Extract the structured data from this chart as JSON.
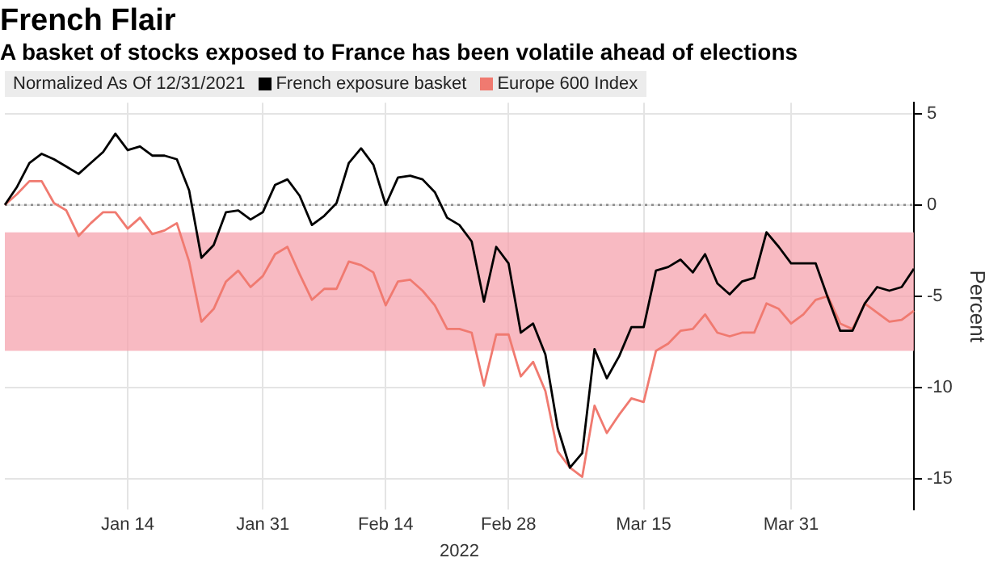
{
  "chart_data": {
    "type": "line",
    "title": "French Flair",
    "subtitle": "A basket of stocks exposed to France has been volatile ahead of elections",
    "xlabel": "2022",
    "ylabel": "Percent",
    "legend_title": "Normalized As Of 12/31/2021",
    "legend": "top left",
    "grid": true,
    "categories": [
      null,
      null,
      null,
      null,
      null,
      null,
      null,
      null,
      null,
      null,
      "Jan 14",
      null,
      null,
      null,
      null,
      null,
      null,
      null,
      null,
      null,
      null,
      "Jan 31",
      null,
      null,
      null,
      null,
      null,
      null,
      null,
      null,
      null,
      "Feb 14",
      null,
      null,
      null,
      null,
      null,
      null,
      null,
      null,
      null,
      "Feb 28",
      null,
      null,
      null,
      null,
      null,
      null,
      null,
      null,
      null,
      null,
      "Mar 15",
      null,
      null,
      null,
      null,
      null,
      null,
      null,
      null,
      null,
      null,
      null,
      "Mar 31",
      null,
      null,
      null,
      null,
      null,
      null,
      null,
      null,
      null,
      null
    ],
    "ylim": [
      -16.7,
      5.6
    ],
    "yticks": [
      -15,
      -10,
      -5,
      0,
      5
    ],
    "series": [
      {
        "name": "French exposure basket",
        "color": "#000000",
        "values": [
          0,
          1.0,
          2.3,
          2.8,
          2.5,
          2.1,
          1.7,
          2.3,
          2.9,
          3.9,
          3.0,
          3.2,
          2.7,
          2.7,
          2.5,
          0.8,
          -2.9,
          -2.2,
          -0.4,
          -0.3,
          -0.8,
          -0.4,
          1.1,
          1.4,
          0.5,
          -1.1,
          -0.6,
          0.1,
          2.3,
          3.1,
          2.2,
          0,
          1.5,
          1.6,
          1.4,
          0.7,
          -0.7,
          -1.1,
          -2.0,
          -5.3,
          -2.3,
          -3.2,
          -7.0,
          -6.5,
          -8.2,
          -12.2,
          -14.4,
          -13.6,
          -7.9,
          -9.5,
          -8.3,
          -6.7,
          -6.7,
          -3.6,
          -3.4,
          -3.0,
          -3.7,
          -2.7,
          -4.3,
          -4.9,
          -4.2,
          -4.0,
          -1.5,
          -2.3,
          -3.2,
          -3.2,
          -3.2,
          -5.1,
          -6.9,
          -6.9,
          -5.4,
          -4.5,
          -4.7,
          -4.5,
          -3.5
        ]
      },
      {
        "name": "Europe 600 Index",
        "color": "#f07a70",
        "values": [
          0,
          0.6,
          1.3,
          1.3,
          0.1,
          -0.3,
          -1.7,
          -1.0,
          -0.4,
          -0.4,
          -1.3,
          -0.7,
          -1.6,
          -1.4,
          -1.0,
          -3.1,
          -6.4,
          -5.7,
          -4.2,
          -3.6,
          -4.5,
          -3.9,
          -2.7,
          -2.3,
          -3.8,
          -5.2,
          -4.6,
          -4.6,
          -3.1,
          -3.3,
          -3.7,
          -5.5,
          -4.2,
          -4.1,
          -4.7,
          -5.5,
          -6.8,
          -6.8,
          -7.0,
          -9.9,
          -7.1,
          -7.1,
          -9.4,
          -8.6,
          -10.2,
          -13.5,
          -14.4,
          -14.9,
          -11.0,
          -12.5,
          -11.5,
          -10.6,
          -10.8,
          -8.0,
          -7.6,
          -6.9,
          -6.8,
          -6.0,
          -7.0,
          -7.2,
          -7.0,
          -7.0,
          -5.4,
          -5.7,
          -6.5,
          -6.0,
          -5.2,
          -5.0,
          -6.5,
          -6.8,
          -5.4,
          -5.9,
          -6.4,
          -6.3,
          -5.8
        ]
      }
    ],
    "ref_lines": [
      {
        "axis": "y",
        "value": 0,
        "color": "#8c8c8c",
        "line_style": "dotted"
      }
    ],
    "bands": [
      {
        "axis": "y",
        "from": -8,
        "to": -1.5,
        "color": "#f5a3ad"
      }
    ]
  }
}
